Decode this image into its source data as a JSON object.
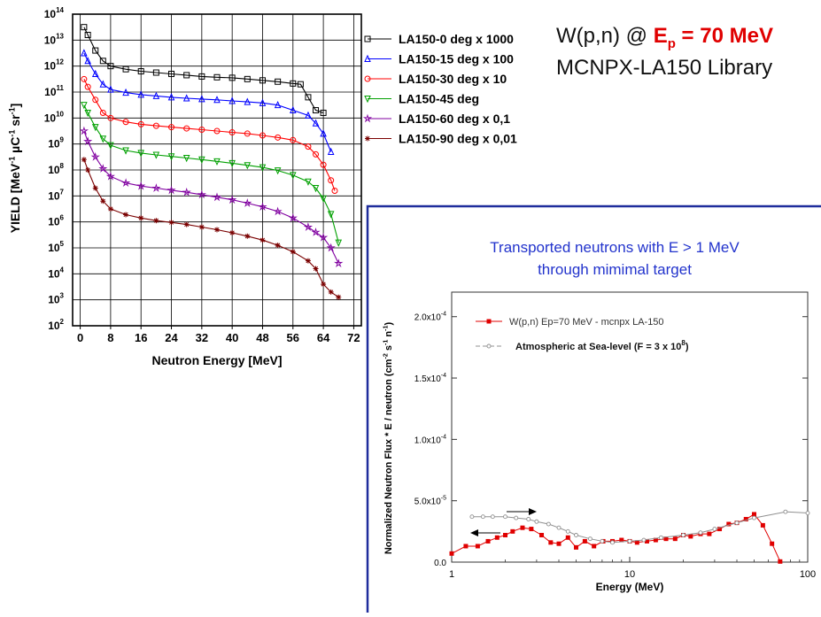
{
  "header": {
    "title_prefix": "W(p,n) @ ",
    "title_E": "E",
    "title_sub": "p",
    "title_suffix": " = 70 MeV",
    "subtitle": "MCNPX-LA150 Library"
  },
  "chart_data": [
    {
      "type": "scatter",
      "xlabel": "Neutron Energy [MeV]",
      "ylabel_parts": [
        "YIELD [MeV",
        "-1",
        " µC",
        "-1",
        " sr",
        "-1",
        "]"
      ],
      "xlim": [
        -2,
        74
      ],
      "ylim_exp": [
        2,
        14
      ],
      "log_y": true,
      "grid": true,
      "legend_placement": "outside-right",
      "x_ticks": [
        "0",
        "8",
        "16",
        "24",
        "32",
        "40",
        "48",
        "56",
        "64",
        "72"
      ],
      "y_tick_exps": [
        "2",
        "3",
        "4",
        "5",
        "6",
        "7",
        "8",
        "9",
        "10",
        "11",
        "12",
        "13",
        "14"
      ],
      "y_tick_base": "10",
      "series": [
        {
          "name": "LA150-0 deg x 1000",
          "color": "#000000",
          "marker": "square",
          "x": [
            1,
            2,
            4,
            6,
            8,
            12,
            16,
            20,
            24,
            28,
            32,
            36,
            40,
            44,
            48,
            52,
            56,
            58,
            60,
            62,
            64
          ],
          "y_exp": [
            13.5,
            13.2,
            12.6,
            12.2,
            12.0,
            11.88,
            11.8,
            11.75,
            11.7,
            11.65,
            11.6,
            11.57,
            11.55,
            11.5,
            11.45,
            11.4,
            11.33,
            11.3,
            10.8,
            10.3,
            10.2
          ]
        },
        {
          "name": "LA150-15 deg x 100",
          "color": "#0000ff",
          "marker": "triangle-up",
          "x": [
            1,
            2,
            4,
            6,
            8,
            12,
            16,
            20,
            24,
            28,
            32,
            36,
            40,
            44,
            48,
            52,
            56,
            60,
            62,
            64,
            66
          ],
          "y_exp": [
            12.5,
            12.2,
            11.7,
            11.3,
            11.1,
            10.98,
            10.9,
            10.85,
            10.8,
            10.76,
            10.73,
            10.7,
            10.66,
            10.62,
            10.58,
            10.5,
            10.3,
            10.1,
            9.8,
            9.4,
            8.7
          ]
        },
        {
          "name": "LA150-30 deg x 10",
          "color": "#ff0000",
          "marker": "circle",
          "x": [
            1,
            2,
            4,
            6,
            8,
            12,
            16,
            20,
            24,
            28,
            32,
            36,
            40,
            44,
            48,
            52,
            56,
            60,
            62,
            64,
            66,
            67
          ],
          "y_exp": [
            11.5,
            11.2,
            10.7,
            10.2,
            10.0,
            9.85,
            9.76,
            9.7,
            9.65,
            9.6,
            9.55,
            9.5,
            9.45,
            9.4,
            9.33,
            9.25,
            9.15,
            8.9,
            8.6,
            8.2,
            7.6,
            7.2
          ]
        },
        {
          "name": "LA150-45 deg",
          "color": "#00a000",
          "marker": "triangle-down",
          "x": [
            1,
            2,
            4,
            6,
            8,
            12,
            16,
            20,
            24,
            28,
            32,
            36,
            40,
            44,
            48,
            52,
            56,
            60,
            62,
            64,
            66,
            68
          ],
          "y_exp": [
            10.5,
            10.2,
            9.65,
            9.2,
            8.95,
            8.75,
            8.65,
            8.58,
            8.52,
            8.46,
            8.4,
            8.33,
            8.26,
            8.18,
            8.1,
            7.98,
            7.8,
            7.55,
            7.3,
            6.9,
            6.3,
            5.2
          ]
        },
        {
          "name": "LA150-60 deg x 0,1",
          "color": "#8000a0",
          "marker": "star",
          "x": [
            1,
            2,
            4,
            6,
            8,
            12,
            16,
            20,
            24,
            28,
            32,
            36,
            40,
            44,
            48,
            52,
            56,
            60,
            62,
            64,
            66,
            68
          ],
          "y_exp": [
            9.5,
            9.1,
            8.5,
            8.05,
            7.75,
            7.5,
            7.38,
            7.3,
            7.22,
            7.14,
            7.05,
            6.95,
            6.85,
            6.72,
            6.58,
            6.4,
            6.15,
            5.8,
            5.6,
            5.4,
            5.0,
            4.4
          ]
        },
        {
          "name": "LA150-90 deg x 0,01",
          "color": "#7a0000",
          "marker": "asterisk",
          "x": [
            1,
            2,
            4,
            6,
            8,
            12,
            16,
            20,
            24,
            28,
            32,
            36,
            40,
            44,
            48,
            52,
            56,
            60,
            62,
            64,
            66,
            68
          ],
          "y_exp": [
            8.4,
            8.0,
            7.3,
            6.8,
            6.5,
            6.28,
            6.15,
            6.05,
            5.98,
            5.9,
            5.8,
            5.7,
            5.58,
            5.45,
            5.3,
            5.1,
            4.85,
            4.5,
            4.2,
            3.6,
            3.3,
            3.1
          ]
        }
      ]
    },
    {
      "type": "line",
      "title_line1": "Transported neutrons with E > 1 MeV",
      "title_line2": "through mimimal target",
      "xlabel": "Energy (MeV)",
      "ylabel_parts": [
        "Normalized Neutron Flux * E / neutron (cm",
        "-2",
        " s",
        "-1",
        " n",
        "-1",
        ")"
      ],
      "log_x": true,
      "xlim": [
        1,
        100
      ],
      "ylim": [
        0,
        0.00022
      ],
      "x_ticks": [
        {
          "v": 1,
          "label": "1"
        },
        {
          "v": 10,
          "label": "10"
        },
        {
          "v": 100,
          "label": "100"
        }
      ],
      "y_ticks": [
        {
          "v": 0,
          "label": "0.0"
        },
        {
          "v": 5e-05,
          "label": "5.0x10",
          "exp": "-5"
        },
        {
          "v": 0.0001,
          "label": "1.0x10",
          "exp": "-4"
        },
        {
          "v": 0.00015,
          "label": "1.5x10",
          "exp": "-4"
        },
        {
          "v": 0.0002,
          "label": "2.0x10",
          "exp": "-4"
        }
      ],
      "legend_placement": "top-left",
      "series": [
        {
          "name": "W(p,n) Ep=70 MeV - mcnpx LA-150",
          "color": "#e00000",
          "marker": "square",
          "x": [
            1.0,
            1.2,
            1.4,
            1.6,
            1.8,
            2.0,
            2.2,
            2.5,
            2.8,
            3.2,
            3.6,
            4.0,
            4.5,
            5.0,
            5.6,
            6.3,
            7.1,
            8.0,
            9.0,
            10,
            11,
            12.5,
            14,
            16,
            18,
            20,
            22,
            25,
            28,
            32,
            36,
            40,
            45,
            50,
            56,
            63,
            70
          ],
          "y": [
            7e-06,
            1.3e-05,
            1.3e-05,
            1.7e-05,
            2e-05,
            2.2e-05,
            2.5e-05,
            2.8e-05,
            2.7e-05,
            2.2e-05,
            1.6e-05,
            1.5e-05,
            2e-05,
            1.2e-05,
            1.7e-05,
            1.3e-05,
            1.7e-05,
            1.7e-05,
            1.8e-05,
            1.7e-05,
            1.6e-05,
            1.7e-05,
            1.8e-05,
            1.9e-05,
            1.9e-05,
            2.2e-05,
            2.1e-05,
            2.3e-05,
            2.3e-05,
            2.7e-05,
            3.1e-05,
            3.2e-05,
            3.5e-05,
            3.9e-05,
            3e-05,
            1.5e-05,
            5e-07
          ]
        },
        {
          "name_pre": "Atmospheric at Sea-level  (F = 3 x 10",
          "name_exp": "8",
          "name_post": ")",
          "color": "#909090",
          "marker": "circle",
          "x": [
            1.3,
            1.5,
            1.7,
            2.0,
            2.3,
            2.7,
            3.0,
            3.5,
            4.0,
            4.5,
            5.0,
            6.0,
            7.0,
            8.0,
            10,
            12,
            15,
            20,
            25,
            30,
            40,
            50,
            75,
            100
          ],
          "y": [
            3.7e-05,
            3.7e-05,
            3.7e-05,
            3.7e-05,
            3.6e-05,
            3.5e-05,
            3.3e-05,
            3.1e-05,
            2.8e-05,
            2.5e-05,
            2.2e-05,
            1.9e-05,
            1.7e-05,
            1.6e-05,
            1.7e-05,
            1.8e-05,
            2e-05,
            2.2e-05,
            2.4e-05,
            2.7e-05,
            3.2e-05,
            3.6e-05,
            4.1e-05,
            4e-05
          ]
        }
      ]
    }
  ]
}
